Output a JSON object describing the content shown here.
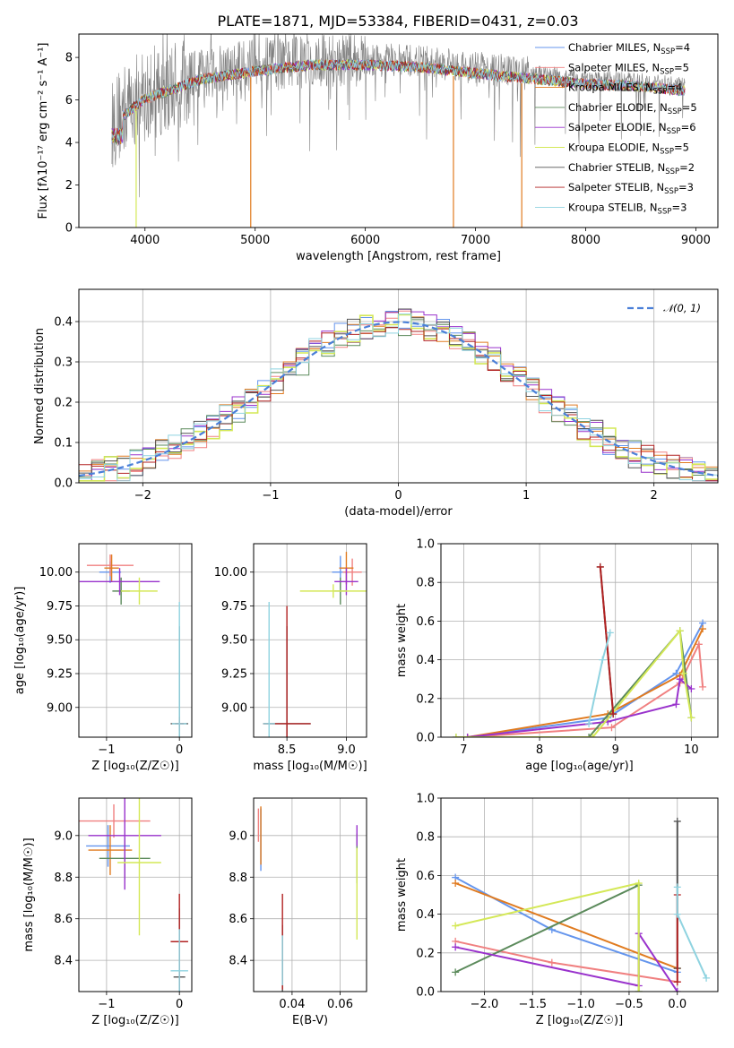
{
  "figure_title": "PLATE=1871, MJD=53384, FIBERID=0431, z=0.03",
  "model_colors": [
    "#6495ed",
    "#f08080",
    "#e07b20",
    "#5b8a5b",
    "#9932cc",
    "#d4e857",
    "#555555",
    "#b22222",
    "#8fd3e0"
  ],
  "model_names": [
    "Chabrier MILES, N_SSP=4",
    "Salpeter MILES, N_SSP=5",
    "Kroupa MILES, N_SSP=4",
    "Chabrier ELODIE, N_SSP=5",
    "Salpeter ELODIE, N_SSP=6",
    "Kroupa ELODIE, N_SSP=5",
    "Chabrier STELIB, N_SSP=2",
    "Salpeter STELIB, N_SSP=3",
    "Kroupa STELIB, N_SSP=3"
  ],
  "chart_data": [
    {
      "id": "spectrum",
      "type": "line",
      "title": "PLATE=1871, MJD=53384, FIBERID=0431, z=0.03",
      "xlabel": "wavelength [Angstrom, rest frame]",
      "ylabel": "Flux [fλ10⁻¹⁷ erg cm⁻² s⁻¹ A⁻¹]",
      "xlim": [
        3400,
        9200
      ],
      "ylim": [
        0,
        9.1
      ],
      "xticks": [
        4000,
        5000,
        6000,
        7000,
        8000,
        9000
      ],
      "yticks": [
        0,
        2,
        4,
        6,
        8
      ],
      "legend_position": "upper-right",
      "legend": [
        "Chabrier MILES, N",
        "Salpeter MILES, N",
        "Kroupa MILES, N",
        "Chabrier ELODIE, N",
        "Salpeter ELODIE, N",
        "Kroupa ELODIE, N",
        "Chabrier STELIB, N",
        "Salpeter STELIB, N",
        "Kroupa STELIB, N"
      ],
      "legend_sub": [
        "SSP",
        "SSP",
        "SSP",
        "SSP",
        "SSP",
        "SSP",
        "SSP",
        "SSP",
        "SSP"
      ],
      "legend_n": [
        "=4",
        "=5",
        "=4",
        "=5",
        "=6",
        "=5",
        "=2",
        "=3",
        "=3"
      ],
      "data_envelope": {
        "x": [
          3700,
          3800,
          4000,
          4500,
          5000,
          5500,
          6000,
          6500,
          7000,
          7400,
          8000,
          8500,
          9000
        ],
        "y": [
          4.8,
          5.5,
          6.3,
          7.2,
          7.6,
          7.9,
          7.9,
          7.8,
          7.5,
          7.3,
          7.0,
          6.9,
          6.6
        ]
      },
      "grid": false
    },
    {
      "id": "residuals",
      "type": "step-histogram",
      "xlabel": "(data-model)/error",
      "ylabel": "Normed distribution",
      "xlim": [
        -2.5,
        2.5
      ],
      "ylim": [
        0,
        0.48
      ],
      "xticks": [
        -2,
        -1,
        0,
        1,
        2
      ],
      "yticks": [
        0.0,
        0.1,
        0.2,
        0.3,
        0.4
      ],
      "legend_position": "upper-right",
      "reference_curve": "𝒩(0, 1)",
      "grid": true
    },
    {
      "id": "age-vs-Z",
      "type": "errorbar",
      "xlabel": "Z [log₁₀(Z/Z☉)]",
      "ylabel": "age  [log₁₀(age/yr)]",
      "xlim": [
        -1.38,
        0.17
      ],
      "ylim": [
        8.78,
        10.21
      ],
      "xticks": [
        -1,
        0
      ],
      "yticks": [
        9.0,
        9.25,
        9.5,
        9.75,
        10.0
      ],
      "grid": true
    },
    {
      "id": "age-vs-mass",
      "type": "errorbar",
      "xlabel": "mass [log₁₀(M/M☉)]",
      "xlim": [
        8.22,
        9.17
      ],
      "ylim": [
        8.78,
        10.21
      ],
      "xticks": [
        8.5,
        9.0
      ],
      "yticks": [
        9.0,
        9.25,
        9.5,
        9.75,
        10.0
      ],
      "grid": true
    },
    {
      "id": "weight-vs-age",
      "type": "line",
      "xlabel": "age  [log₁₀(age/yr)]",
      "ylabel": "mass weight",
      "xlim": [
        6.7,
        10.35
      ],
      "ylim": [
        0,
        1.0
      ],
      "xticks": [
        7,
        8,
        9,
        10
      ],
      "yticks": [
        0.0,
        0.2,
        0.4,
        0.6,
        0.8,
        1.0
      ],
      "grid": true
    },
    {
      "id": "mass-vs-Z",
      "type": "errorbar",
      "xlabel": "Z [log₁₀(Z/Z☉)]",
      "ylabel": "mass [log₁₀(M/M☉)]",
      "xlim": [
        -1.38,
        0.17
      ],
      "ylim": [
        8.25,
        9.18
      ],
      "xticks": [
        -1,
        0
      ],
      "yticks": [
        8.4,
        8.6,
        8.8,
        9.0
      ],
      "grid": true
    },
    {
      "id": "mass-vs-ebv",
      "type": "errorbar",
      "xlabel": "E(B-V)",
      "xlim": [
        0.024,
        0.071
      ],
      "ylim": [
        8.25,
        9.18
      ],
      "xticks": [
        0.04,
        0.06
      ],
      "yticks": [
        8.4,
        8.6,
        8.8,
        9.0
      ],
      "grid": true
    },
    {
      "id": "weight-vs-Z",
      "type": "line",
      "xlabel": "Z [log₁₀(Z/Z☉)]",
      "ylabel": "mass weight",
      "xlim": [
        -2.45,
        0.42
      ],
      "ylim": [
        0,
        1.0
      ],
      "xticks": [
        -2.0,
        -1.5,
        -1.0,
        -0.5,
        0.0
      ],
      "yticks": [
        0.0,
        0.2,
        0.4,
        0.6,
        0.8,
        1.0
      ],
      "grid": true
    }
  ],
  "errorbars_ageZ": [
    {
      "m": 0,
      "x": -0.95,
      "y": 10.0,
      "xe": 0.15,
      "ye": 0.08
    },
    {
      "m": 1,
      "x": -0.95,
      "y": 10.05,
      "xe": 0.32,
      "ye": 0.08
    },
    {
      "m": 2,
      "x": -0.93,
      "y": 10.03,
      "xe": 0.1,
      "ye": 0.1
    },
    {
      "m": 3,
      "x": -0.8,
      "y": 9.86,
      "xe": 0.12,
      "ye": 0.1
    },
    {
      "m": 4,
      "x": -0.82,
      "y": 9.93,
      "xe": 0.55,
      "ye": 0.1
    },
    {
      "m": 5,
      "x": -0.55,
      "y": 9.86,
      "xe": 0.25,
      "ye": 0.1
    },
    {
      "m": 6,
      "x": 0.0,
      "y": 8.88,
      "xe": 0.12,
      "ye": 0.72
    },
    {
      "m": 7,
      "x": 0.0,
      "y": 8.88,
      "xe": 0.06,
      "ye": 0.05
    },
    {
      "m": 8,
      "x": 0.0,
      "y": 8.88,
      "xe": 0.1,
      "ye": 0.9
    }
  ],
  "errorbars_ageMass": [
    {
      "m": 0,
      "x": 8.95,
      "y": 10.0,
      "xe": 0.07,
      "ye": 0.12
    },
    {
      "m": 1,
      "x": 9.05,
      "y": 10.0,
      "xe": 0.08,
      "ye": 0.1
    },
    {
      "m": 2,
      "x": 9.0,
      "y": 10.03,
      "xe": 0.06,
      "ye": 0.12
    },
    {
      "m": 3,
      "x": 8.95,
      "y": 9.86,
      "xe": 0.05,
      "ye": 0.1
    },
    {
      "m": 4,
      "x": 9.0,
      "y": 9.93,
      "xe": 0.1,
      "ye": 0.1
    },
    {
      "m": 5,
      "x": 8.89,
      "y": 9.86,
      "xe": 0.28,
      "ye": 0.05
    },
    {
      "m": 6,
      "x": 8.5,
      "y": 8.88,
      "xe": 0.2,
      "ye": 0.72
    },
    {
      "m": 7,
      "x": 8.5,
      "y": 8.88,
      "xe": 0.2,
      "ye": 0.87
    },
    {
      "m": 8,
      "x": 8.35,
      "y": 8.88,
      "xe": 0.05,
      "ye": 0.9
    }
  ],
  "errorbars_massZ": [
    {
      "m": 0,
      "x": -0.98,
      "y": 8.95,
      "xe": 0.3,
      "ye": 0.1
    },
    {
      "m": 1,
      "x": -0.9,
      "y": 9.07,
      "xe": 0.5,
      "ye": 0.08
    },
    {
      "m": 2,
      "x": -0.95,
      "y": 8.93,
      "xe": 0.3,
      "ye": 0.12
    },
    {
      "m": 3,
      "x": -0.75,
      "y": 8.89,
      "xe": 0.35,
      "ye": 0.1
    },
    {
      "m": 4,
      "x": -0.75,
      "y": 9.0,
      "xe": 0.5,
      "ye": 0.26
    },
    {
      "m": 5,
      "x": -0.55,
      "y": 8.87,
      "xe": 0.3,
      "ye": 0.35
    },
    {
      "m": 6,
      "x": 0.0,
      "y": 8.32,
      "xe": 0.08,
      "ye": 0.33
    },
    {
      "m": 7,
      "x": 0.0,
      "y": 8.49,
      "xe": 0.12,
      "ye": 0.23
    },
    {
      "m": 8,
      "x": 0.0,
      "y": 8.35,
      "xe": 0.12,
      "ye": 0.2
    }
  ],
  "errorbars_massEbv": [
    {
      "m": 0,
      "x": 0.027,
      "y": 8.98,
      "xe": 0.0,
      "ye": 0.15
    },
    {
      "m": 1,
      "x": 0.026,
      "y": 9.05,
      "xe": 0.0,
      "ye": 0.08
    },
    {
      "m": 2,
      "x": 0.027,
      "y": 9.0,
      "xe": 0.0,
      "ye": 0.14
    },
    {
      "m": 3,
      "x": 0.067,
      "y": 8.89,
      "xe": 0.0,
      "ye": 0.12
    },
    {
      "m": 4,
      "x": 0.067,
      "y": 9.0,
      "xe": 0.0,
      "ye": 0.05
    },
    {
      "m": 5,
      "x": 0.067,
      "y": 8.72,
      "xe": 0.0,
      "ye": 0.22
    },
    {
      "m": 6,
      "x": 0.036,
      "y": 8.32,
      "xe": 0.0,
      "ye": 0.25
    },
    {
      "m": 7,
      "x": 0.036,
      "y": 8.49,
      "xe": 0.0,
      "ye": 0.23
    },
    {
      "m": 8,
      "x": 0.036,
      "y": 8.4,
      "xe": 0.0,
      "ye": 0.12
    }
  ],
  "weights_age": [
    {
      "m": 0,
      "pts": [
        [
          7.05,
          0.0
        ],
        [
          8.9,
          0.1
        ],
        [
          9.8,
          0.33
        ],
        [
          10.15,
          0.59
        ]
      ]
    },
    {
      "m": 1,
      "pts": [
        [
          7.05,
          0.0
        ],
        [
          8.95,
          0.05
        ],
        [
          9.85,
          0.28
        ],
        [
          10.1,
          0.48
        ],
        [
          10.15,
          0.26
        ]
      ]
    },
    {
      "m": 2,
      "pts": [
        [
          7.05,
          0.0
        ],
        [
          8.9,
          0.12
        ],
        [
          9.85,
          0.32
        ],
        [
          10.15,
          0.56
        ]
      ]
    },
    {
      "m": 3,
      "pts": [
        [
          6.9,
          0.0
        ],
        [
          8.65,
          0.0
        ],
        [
          9.85,
          0.55
        ],
        [
          10.0,
          0.1
        ]
      ]
    },
    {
      "m": 4,
      "pts": [
        [
          7.05,
          0.0
        ],
        [
          8.9,
          0.08
        ],
        [
          9.8,
          0.17
        ],
        [
          9.85,
          0.3
        ],
        [
          10.0,
          0.25
        ]
      ]
    },
    {
      "m": 5,
      "pts": [
        [
          6.9,
          0.0
        ],
        [
          8.7,
          0.0
        ],
        [
          9.85,
          0.55
        ],
        [
          9.9,
          0.33
        ],
        [
          10.0,
          0.1
        ]
      ]
    },
    {
      "m": 6,
      "pts": [
        [
          8.8,
          0.88
        ],
        [
          8.97,
          0.12
        ]
      ]
    },
    {
      "m": 7,
      "pts": [
        [
          8.8,
          0.88
        ],
        [
          8.97,
          0.12
        ]
      ]
    },
    {
      "m": 8,
      "pts": [
        [
          8.65,
          0.07
        ],
        [
          8.83,
          0.4
        ],
        [
          8.93,
          0.54
        ]
      ]
    }
  ],
  "weights_Z": [
    {
      "m": 0,
      "pts": [
        [
          -2.3,
          0.59
        ],
        [
          -1.3,
          0.32
        ],
        [
          0.0,
          0.1
        ]
      ]
    },
    {
      "m": 1,
      "pts": [
        [
          -2.3,
          0.26
        ],
        [
          -1.3,
          0.15
        ],
        [
          0.0,
          0.05
        ]
      ]
    },
    {
      "m": 2,
      "pts": [
        [
          -2.3,
          0.56
        ],
        [
          0.0,
          0.12
        ]
      ]
    },
    {
      "m": 3,
      "pts": [
        [
          -2.3,
          0.1
        ],
        [
          -0.4,
          0.55
        ],
        [
          -0.4,
          0.0
        ]
      ]
    },
    {
      "m": 4,
      "pts": [
        [
          -2.3,
          0.23
        ],
        [
          -0.4,
          0.03
        ],
        [
          -0.4,
          0.3
        ],
        [
          0.0,
          0.0
        ]
      ]
    },
    {
      "m": 5,
      "pts": [
        [
          -2.3,
          0.34
        ],
        [
          -0.4,
          0.56
        ],
        [
          -0.4,
          0.0
        ]
      ]
    },
    {
      "m": 6,
      "pts": [
        [
          0.0,
          0.88
        ],
        [
          0.0,
          0.12
        ]
      ]
    },
    {
      "m": 7,
      "pts": [
        [
          0.0,
          0.5
        ],
        [
          0.0,
          0.05
        ]
      ]
    },
    {
      "m": 8,
      "pts": [
        [
          0.0,
          0.54
        ],
        [
          0.0,
          0.4
        ],
        [
          0.3,
          0.07
        ]
      ]
    }
  ]
}
